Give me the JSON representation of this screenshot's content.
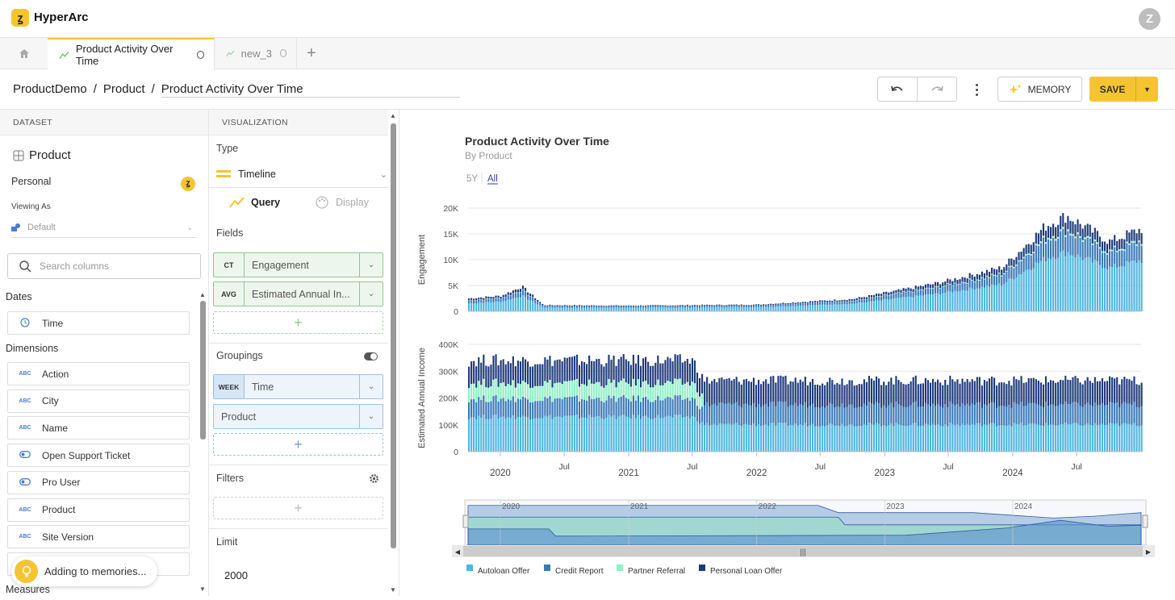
{
  "app": {
    "brand": "HyperArc",
    "logo_glyph": "ꙁ",
    "user_initial": "Z"
  },
  "tabs": [
    {
      "label": "Product Activity Over Time",
      "active": true
    },
    {
      "label": "new_3",
      "active": false
    }
  ],
  "breadcrumb": {
    "items": [
      "ProductDemo",
      "Product"
    ],
    "current": "Product Activity Over Time",
    "separator": "/"
  },
  "toolbar": {
    "memory_label": "MEMORY",
    "save_label": "SAVE"
  },
  "dataset": {
    "header": "DATASET",
    "name": "Product",
    "owner": "Personal",
    "viewing_as_label": "Viewing As",
    "viewing_as_value": "Default",
    "search_placeholder": "Search columns",
    "dates_label": "Dates",
    "dates": [
      "Time"
    ],
    "dimensions_label": "Dimensions",
    "dimensions": [
      {
        "label": "Action",
        "type": "abc"
      },
      {
        "label": "City",
        "type": "abc"
      },
      {
        "label": "Name",
        "type": "abc"
      },
      {
        "label": "Open Support Ticket",
        "type": "bool"
      },
      {
        "label": "Pro User",
        "type": "bool"
      },
      {
        "label": "Product",
        "type": "abc"
      },
      {
        "label": "Site Version",
        "type": "abc"
      }
    ],
    "measures_label": "Measures"
  },
  "visualization": {
    "header": "VISUALIZATION",
    "type_label": "Type",
    "type_value": "Timeline",
    "query_tab": "Query",
    "display_tab": "Display",
    "fields_label": "Fields",
    "fields": [
      {
        "agg": "CT",
        "name": "Engagement"
      },
      {
        "agg": "AVG",
        "name": "Estimated Annual In..."
      }
    ],
    "groupings_label": "Groupings",
    "groupings": [
      {
        "tag": "WEEK",
        "name": "Time"
      },
      {
        "tag": "",
        "name": "Product"
      }
    ],
    "filters_label": "Filters",
    "limit_label": "Limit",
    "limit_value": "2000"
  },
  "toast": {
    "text": "Adding to memories..."
  },
  "chart_data": {
    "type": "bar",
    "title": "Product Activity Over Time",
    "subtitle": "By Product",
    "range_buttons": [
      "5Y",
      "All"
    ],
    "range_selected": "All",
    "x_tick_labels": [
      "2020",
      "Jul",
      "2021",
      "Jul",
      "2022",
      "Jul",
      "2023",
      "Jul",
      "2024",
      "Jul"
    ],
    "navigator_labels": [
      "2020",
      "2021",
      "2022",
      "2023",
      "2024"
    ],
    "panels": [
      {
        "ylabel": "Engagement",
        "yticks": [
          "0",
          "5K",
          "10K",
          "15K",
          "20K"
        ],
        "ylim": [
          0,
          20000
        ],
        "series_profile": {
          "x": [
            "2019-10",
            "2020-01",
            "2020-03",
            "2020-05",
            "2021-01",
            "2022-01",
            "2022-10",
            "2023-06",
            "2023-12",
            "2024-04",
            "2024-06",
            "2024-10",
            "2025-01"
          ],
          "total": [
            2500,
            3000,
            4800,
            1200,
            1100,
            1300,
            2400,
            5500,
            8500,
            16500,
            18500,
            13500,
            16000
          ]
        }
      },
      {
        "ylabel": "Estimated Annual Income",
        "yticks": [
          "0",
          "100K",
          "200K",
          "300K",
          "400K"
        ],
        "ylim": [
          0,
          400000
        ],
        "series_profile": {
          "x": [
            "2019-10",
            "2021-07",
            "2021-08",
            "2025-01"
          ],
          "total": [
            340000,
            340000,
            265000,
            265000
          ]
        }
      }
    ],
    "series": [
      {
        "name": "Autoloan Offer",
        "color": "#4fb6e0"
      },
      {
        "name": "Credit Report",
        "color": "#3a78b8"
      },
      {
        "name": "Partner Referral",
        "color": "#8ff0c4"
      },
      {
        "name": "Personal Loan Offer",
        "color": "#1e3a7a"
      }
    ],
    "legend_position": "bottom-left"
  }
}
